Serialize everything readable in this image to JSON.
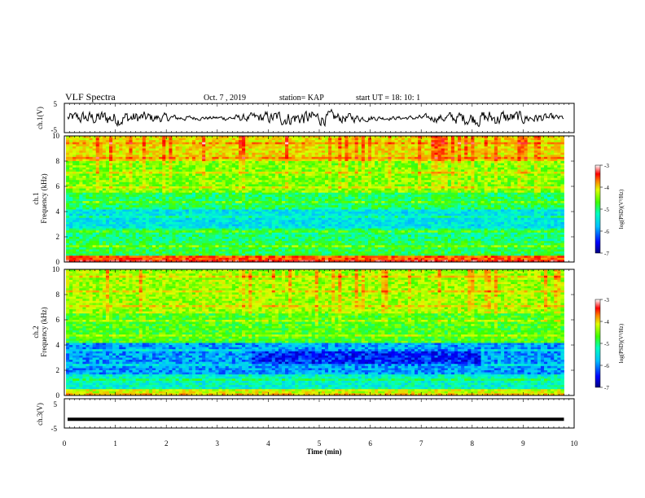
{
  "header": {
    "title": "VLF Spectra",
    "date": "Oct. 7 , 2019",
    "station": "station= KAP",
    "start": "start UT = 18: 10: 1"
  },
  "chart_data": [
    {
      "type": "line",
      "name": "ch1-waveform",
      "ylabel": "ch.1(V)",
      "xlim": [
        0,
        10
      ],
      "ylim": [
        -5,
        5
      ],
      "yticks": [
        "5",
        "-5"
      ],
      "x_end": 9.8
    },
    {
      "type": "heatmap",
      "name": "ch1-spectrogram",
      "ylabel": "ch.1\nFrequency (kHz)",
      "xlim": [
        0,
        10
      ],
      "ylim": [
        0,
        10
      ],
      "yticks": [
        "0",
        "2",
        "4",
        "6",
        "8",
        "10"
      ],
      "x_end": 9.8,
      "colorbar": {
        "label": "log(PSD)(V²/Hz)",
        "range": [
          -7,
          -3
        ],
        "ticks": [
          "-3",
          "-4",
          "-5",
          "-6",
          "-7"
        ]
      }
    },
    {
      "type": "heatmap",
      "name": "ch2-spectrogram",
      "ylabel": "ch.2\nFrequency (kHz)",
      "xlim": [
        0,
        10
      ],
      "ylim": [
        0,
        10
      ],
      "yticks": [
        "0",
        "2",
        "4",
        "6",
        "8",
        "10"
      ],
      "x_end": 9.8,
      "colorbar": {
        "label": "log(PSD)(V²/Hz)",
        "range": [
          -7,
          -3
        ],
        "ticks": [
          "-3",
          "-4",
          "-5",
          "-6",
          "-7"
        ]
      }
    },
    {
      "type": "line",
      "name": "ch3-waveform",
      "ylabel": "ch.3(V)",
      "xlim": [
        0,
        10
      ],
      "ylim": [
        -5,
        5
      ],
      "yticks": [
        "5",
        "-5"
      ],
      "y_value": -2,
      "x_end": 9.8
    }
  ],
  "xaxis": {
    "label": "Time (min)",
    "ticks": [
      "0",
      "1",
      "2",
      "3",
      "4",
      "5",
      "6",
      "7",
      "8",
      "9",
      "10"
    ]
  },
  "colors": {
    "colormap": [
      "#000080",
      "#0000ff",
      "#00a0ff",
      "#00ffff",
      "#00ff80",
      "#80ff00",
      "#ffff00",
      "#ff8000",
      "#ff0000",
      "#ffffff"
    ]
  }
}
